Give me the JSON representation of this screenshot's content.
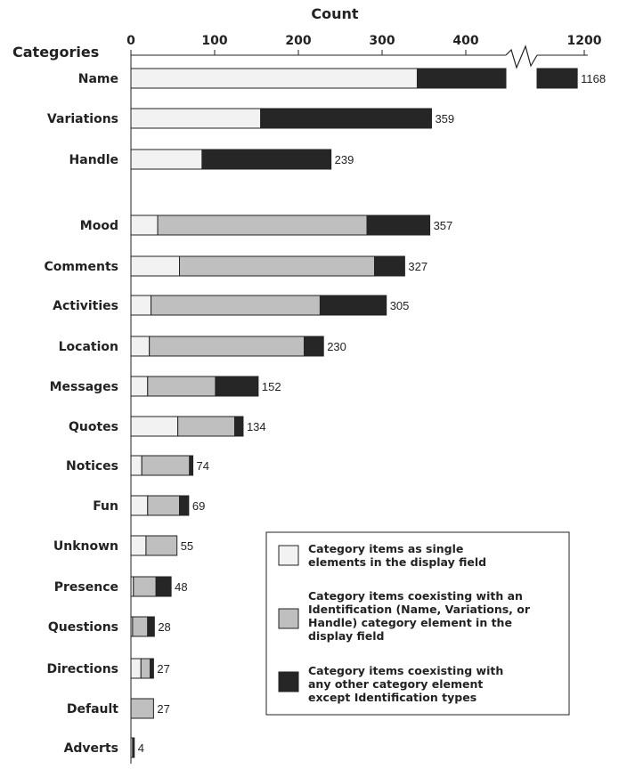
{
  "chart_data": {
    "type": "bar",
    "orientation": "horizontal",
    "stacked": true,
    "title": "Count",
    "ylabel": "Categories",
    "xlim": [
      0,
      1200
    ],
    "axis_break": {
      "from": 450,
      "to": 1120
    },
    "x_ticks": [
      "0",
      "100",
      "200",
      "300",
      "400",
      "1200"
    ],
    "categories": [
      "Name",
      "Variations",
      "Handle",
      "Mood",
      "Comments",
      "Activities",
      "Location",
      "Messages",
      "Quotes",
      "Notices",
      "Fun",
      "Unknown",
      "Presence",
      "Questions",
      "Directions",
      "Default",
      "Adverts"
    ],
    "totals": [
      1168,
      359,
      239,
      357,
      327,
      305,
      230,
      152,
      134,
      74,
      69,
      55,
      48,
      28,
      27,
      27,
      4
    ],
    "total_labels": [
      "1168",
      "359",
      "239",
      "357",
      "327",
      "305",
      "230",
      "152",
      "134",
      "74",
      "69",
      "55",
      "48",
      "28",
      "27",
      "27",
      "4"
    ],
    "series": [
      {
        "name": "Category items as single elements in the display field",
        "color": "#f2f2f2",
        "values": [
          342,
          155,
          85,
          32,
          58,
          24,
          22,
          20,
          56,
          13,
          20,
          18,
          3,
          2,
          12,
          0,
          2
        ]
      },
      {
        "name": "Category items coexisting with an Identification (Name, Variations, or Handle) category element in the display field",
        "color": "#bfbfbf",
        "values": [
          0,
          0,
          0,
          250,
          233,
          202,
          185,
          81,
          68,
          57,
          38,
          37,
          27,
          18,
          11,
          27,
          0
        ]
      },
      {
        "name": "Category items coexisting with any other category element except Identification types",
        "color": "#262626",
        "values": [
          826,
          204,
          154,
          75,
          36,
          79,
          23,
          51,
          10,
          4,
          11,
          0,
          18,
          8,
          4,
          0,
          2
        ]
      }
    ],
    "legend_position": "bottom-right",
    "grid": false
  }
}
